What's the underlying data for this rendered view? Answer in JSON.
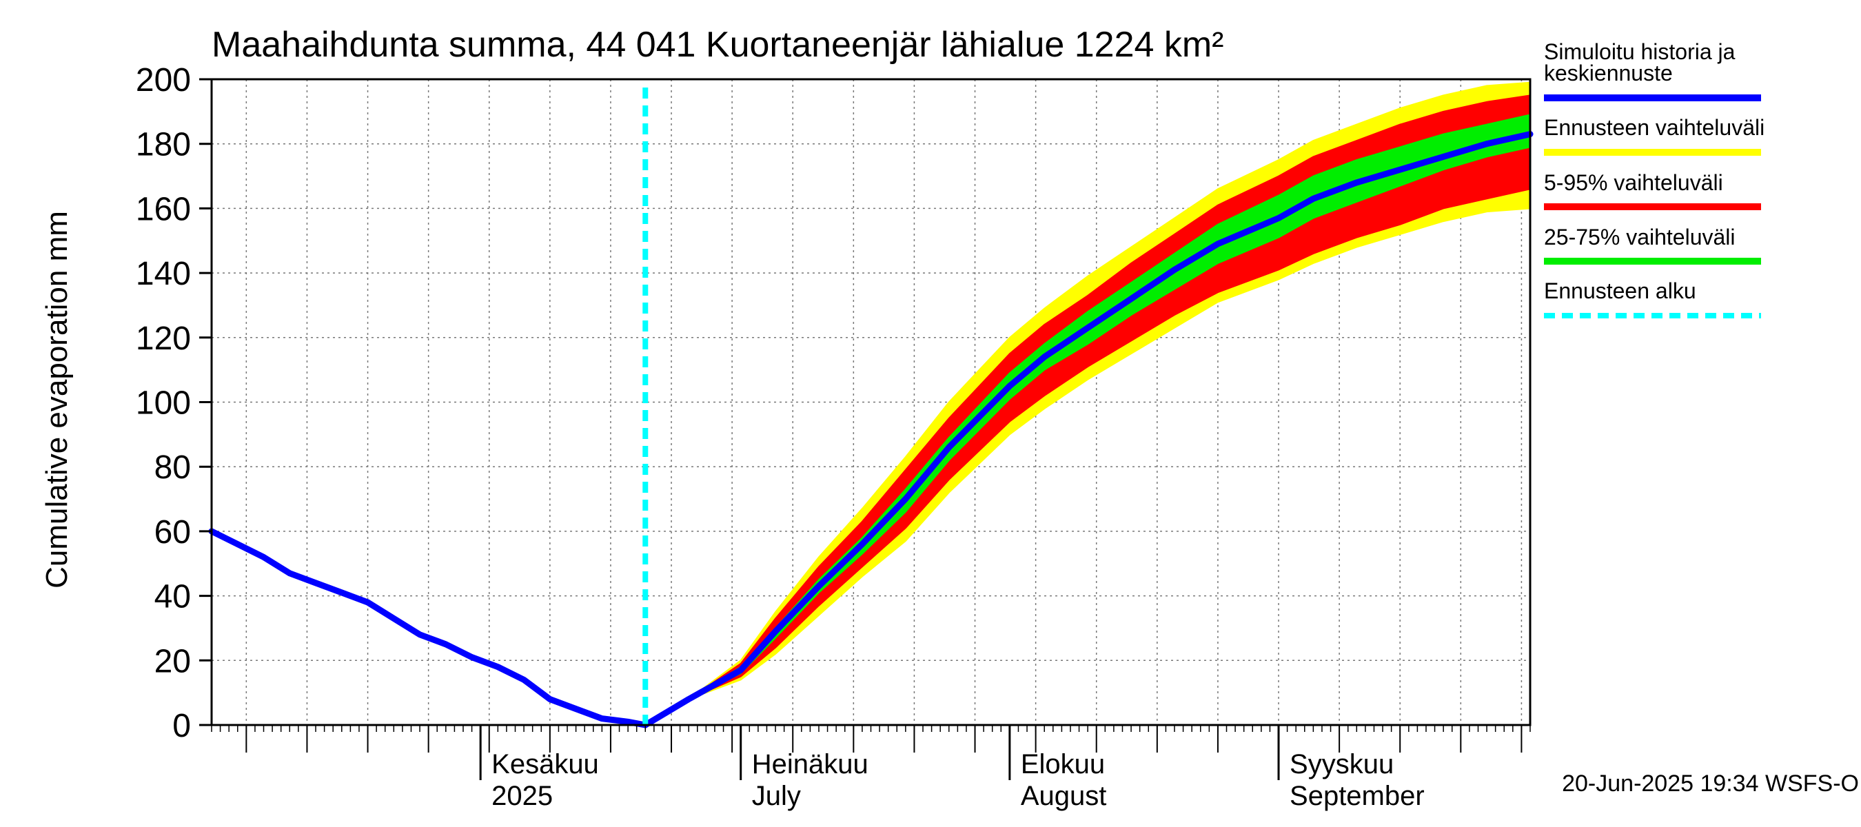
{
  "chart_data": {
    "type": "area",
    "title": "Maahaihdunta summa, 44 041 Kuortaneenjär lähialue 1224 km²",
    "ylabel": "Cumulative evaporation   mm",
    "ylim": [
      0,
      200
    ],
    "yticks": [
      0,
      20,
      40,
      60,
      80,
      100,
      120,
      140,
      160,
      180,
      200
    ],
    "xlim": [
      "2025-05-01",
      "2025-09-30"
    ],
    "month_labels": [
      {
        "date": "2025-06-01",
        "line1": "Kesäkuu",
        "line2": "2025"
      },
      {
        "date": "2025-07-01",
        "line1": "Heinäkuu",
        "line2": "July"
      },
      {
        "date": "2025-08-01",
        "line1": "Elokuu",
        "line2": "August"
      },
      {
        "date": "2025-09-01",
        "line1": "Syyskuu",
        "line2": "September"
      }
    ],
    "forecast_start": "2025-06-20",
    "grid": true,
    "legend_position": "right",
    "legend": [
      {
        "label": "Simuloitu historia ja keskiennuste",
        "color": "#0000ff",
        "style": "solid"
      },
      {
        "label": "Ennusteen vaihteluväli",
        "color": "#ffff00",
        "style": "solid"
      },
      {
        "label": "5-95% vaihteluväli",
        "color": "#ff0000",
        "style": "solid"
      },
      {
        "label": "25-75% vaihteluväli",
        "color": "#00ee00",
        "style": "solid"
      },
      {
        "label": "Ennusteen alku",
        "color": "#00ffff",
        "style": "dashed"
      }
    ],
    "history": {
      "x": [
        "2025-05-01",
        "2025-05-04",
        "2025-05-07",
        "2025-05-10",
        "2025-05-13",
        "2025-05-16",
        "2025-05-19",
        "2025-05-22",
        "2025-05-25",
        "2025-05-28",
        "2025-05-31",
        "2025-06-03",
        "2025-06-06",
        "2025-06-09",
        "2025-06-12",
        "2025-06-15",
        "2025-06-18",
        "2025-06-20"
      ],
      "y": [
        60,
        56,
        52,
        47,
        44,
        41,
        38,
        33,
        28,
        25,
        21,
        18,
        14,
        8,
        5,
        2,
        1,
        0
      ]
    },
    "forecast": {
      "x": [
        "2025-06-20",
        "2025-06-25",
        "2025-07-01",
        "2025-07-05",
        "2025-07-10",
        "2025-07-15",
        "2025-07-20",
        "2025-07-25",
        "2025-08-01",
        "2025-08-05",
        "2025-08-10",
        "2025-08-15",
        "2025-08-20",
        "2025-08-25",
        "2025-09-01",
        "2025-09-05",
        "2025-09-10",
        "2025-09-15",
        "2025-09-20",
        "2025-09-25",
        "2025-09-30"
      ],
      "median": [
        0,
        8,
        17,
        29,
        43,
        56,
        70,
        86,
        105,
        114,
        123,
        132,
        141,
        149,
        157,
        163,
        168,
        172,
        176,
        180,
        183
      ],
      "p25": [
        0,
        8,
        16,
        27,
        41,
        53,
        66,
        82,
        101,
        110,
        118,
        127,
        135,
        143,
        151,
        157,
        162,
        167,
        172,
        176,
        179
      ],
      "p75": [
        0,
        8,
        18,
        30,
        45,
        58,
        73,
        89,
        109,
        118,
        128,
        137,
        146,
        155,
        164,
        170,
        175,
        179,
        183,
        186,
        189
      ],
      "p05": [
        0,
        8,
        15,
        24,
        37,
        49,
        61,
        76,
        94,
        102,
        111,
        119,
        127,
        134,
        141,
        146,
        151,
        155,
        160,
        163,
        166
      ],
      "p95": [
        0,
        8,
        19,
        33,
        49,
        63,
        79,
        95,
        115,
        124,
        133,
        143,
        152,
        161,
        170,
        176,
        181,
        186,
        190,
        193,
        195
      ],
      "min": [
        0,
        8,
        14,
        22,
        34,
        46,
        57,
        72,
        90,
        98,
        107,
        115,
        123,
        131,
        138,
        143,
        148,
        152,
        156,
        159,
        160
      ],
      "max": [
        0,
        8,
        20,
        35,
        52,
        67,
        83,
        100,
        120,
        129,
        139,
        148,
        157,
        166,
        175,
        181,
        186,
        191,
        195,
        198,
        199
      ]
    },
    "footer": "20-Jun-2025 19:34 WSFS-O"
  }
}
